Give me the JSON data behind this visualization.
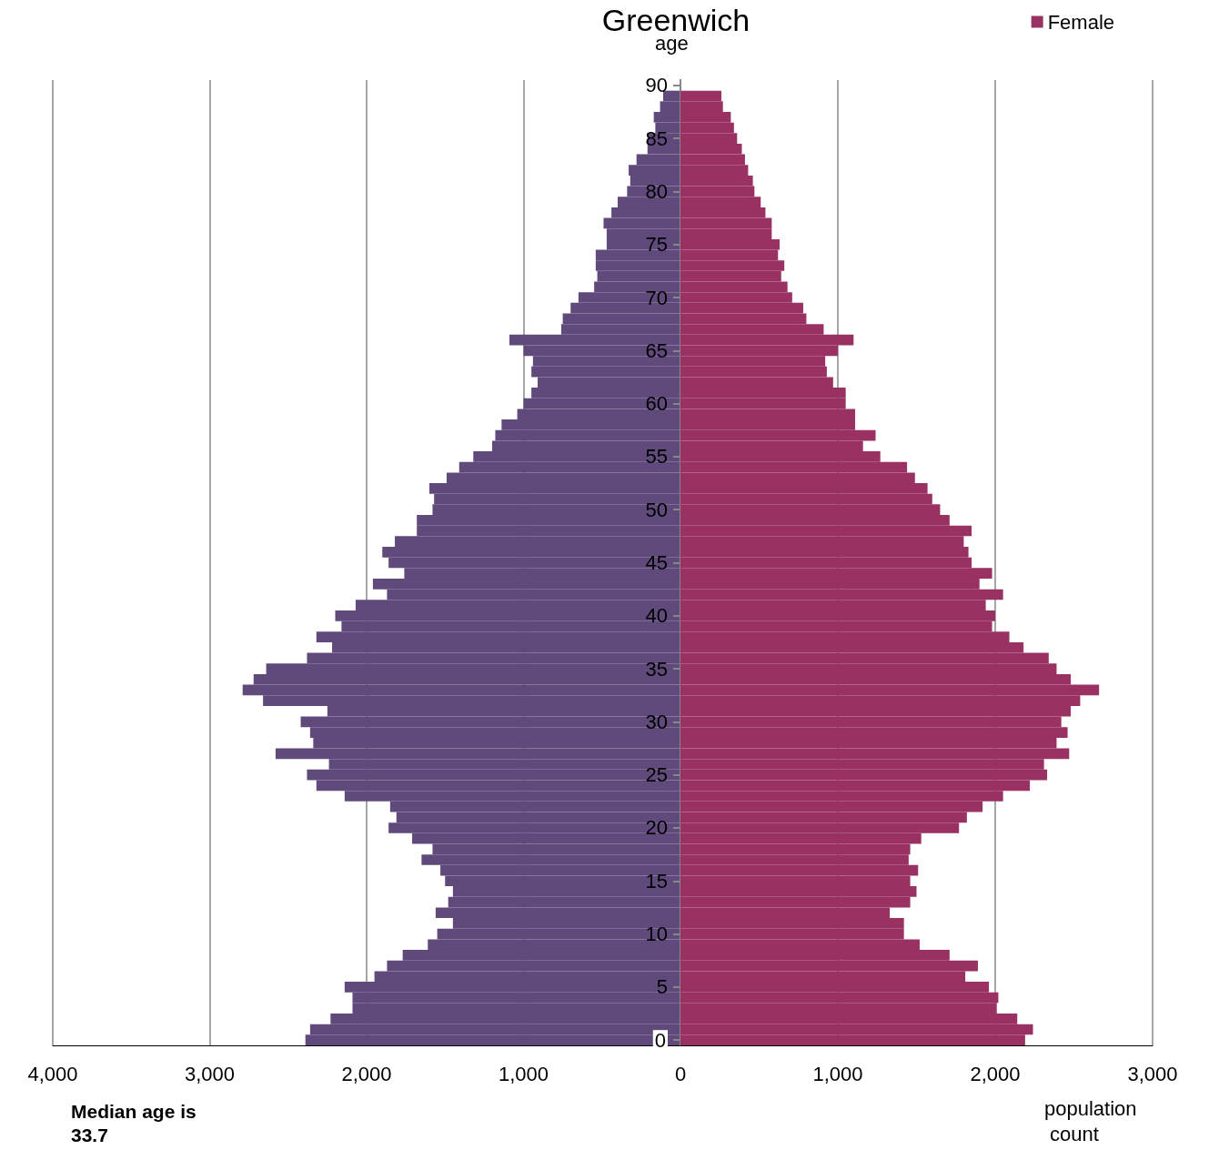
{
  "chart_data": [
    {
      "type": "bar",
      "orientation": "horizontal",
      "title": "Greenwich",
      "annotations": [
        "Median age is 33.7"
      ],
      "categories": [
        "90",
        null,
        null,
        null,
        null,
        "85",
        null,
        null,
        null,
        null,
        "80",
        null,
        null,
        null,
        null,
        "75",
        null,
        null,
        null,
        null,
        "70",
        null,
        null,
        null,
        null,
        "65",
        null,
        null,
        null,
        null,
        "60",
        null,
        null,
        null,
        null,
        "55",
        null,
        null,
        null,
        null,
        "50",
        null,
        null,
        null,
        null,
        "45",
        null,
        null,
        null,
        null,
        "40",
        null,
        null,
        null,
        null,
        "35",
        null,
        null,
        null,
        null,
        "30",
        null,
        null,
        null,
        null,
        "25",
        null,
        null,
        null,
        null,
        "20",
        null,
        null,
        null,
        null,
        "15",
        null,
        null,
        null,
        null,
        "10",
        null,
        null,
        null,
        null,
        "5",
        null,
        null,
        null,
        null,
        "0"
      ],
      "series": [
        {
          "color": "#5f4a7b",
          "values": [
            null,
            110,
            130,
            170,
            160,
            210,
            210,
            280,
            330,
            320,
            340,
            400,
            440,
            490,
            470,
            470,
            540,
            540,
            530,
            550,
            650,
            700,
            750,
            760,
            1090,
            1000,
            940,
            950,
            910,
            950,
            1000,
            1040,
            1140,
            1180,
            1200,
            1320,
            1410,
            1490,
            1600,
            1570,
            1580,
            1680,
            1680,
            1820,
            1900,
            1860,
            1760,
            1960,
            1870,
            2070,
            2200,
            2160,
            2320,
            2220,
            2380,
            2640,
            2720,
            2790,
            2660,
            2250,
            2420,
            2360,
            2340,
            2580,
            2240,
            2380,
            2320,
            2140,
            1850,
            1810,
            1860,
            1710,
            1580,
            1650,
            1530,
            1500,
            1450,
            1480,
            1560,
            1450,
            1550,
            1610,
            1770,
            1870,
            1950,
            2140,
            2090,
            2090,
            2230,
            2360,
            2390
          ]
        }
      ],
      "xlim": [
        4000,
        0
      ],
      "xticks": [
        {
          "value": 4000,
          "label": "4,000"
        },
        {
          "value": 3000,
          "label": "3,000"
        },
        {
          "value": 2000,
          "label": "2,000"
        },
        {
          "value": 1000,
          "label": "1,000"
        },
        0
      ],
      "grid": "x",
      "tick_labels": "x"
    },
    {
      "type": "bar",
      "orientation": "horizontal",
      "ylabel": "age",
      "xlabel": "population count",
      "categories": [
        "90",
        null,
        null,
        null,
        null,
        "85",
        null,
        null,
        null,
        null,
        "80",
        null,
        null,
        null,
        null,
        "75",
        null,
        null,
        null,
        null,
        "70",
        null,
        null,
        null,
        null,
        "65",
        null,
        null,
        null,
        null,
        "60",
        null,
        null,
        null,
        null,
        "55",
        null,
        null,
        null,
        null,
        "50",
        null,
        null,
        null,
        null,
        "45",
        null,
        null,
        null,
        null,
        "40",
        null,
        null,
        null,
        null,
        "35",
        null,
        null,
        null,
        null,
        "30",
        null,
        null,
        null,
        null,
        "25",
        null,
        null,
        null,
        null,
        "20",
        null,
        null,
        null,
        null,
        "15",
        null,
        null,
        null,
        null,
        "10",
        null,
        null,
        null,
        null,
        "5",
        null,
        null,
        null,
        null,
        "0"
      ],
      "series": [
        {
          "name": "Female",
          "color": "#993263",
          "values": [
            null,
            260,
            270,
            320,
            340,
            360,
            390,
            410,
            430,
            460,
            470,
            510,
            540,
            580,
            580,
            630,
            620,
            660,
            640,
            680,
            710,
            780,
            800,
            910,
            1100,
            1000,
            920,
            930,
            970,
            1050,
            1050,
            1110,
            1110,
            1240,
            1160,
            1270,
            1440,
            1490,
            1570,
            1600,
            1650,
            1710,
            1850,
            1800,
            1830,
            1850,
            1980,
            1900,
            2050,
            1940,
            2000,
            1980,
            2090,
            2180,
            2340,
            2390,
            2480,
            2660,
            2540,
            2480,
            2420,
            2460,
            2390,
            2470,
            2310,
            2330,
            2220,
            2050,
            1920,
            1820,
            1770,
            1530,
            1460,
            1450,
            1510,
            1460,
            1500,
            1460,
            1330,
            1420,
            1420,
            1520,
            1710,
            1890,
            1810,
            1960,
            2020,
            2010,
            2140,
            2240,
            2190
          ]
        }
      ],
      "xlim": [
        0,
        3000
      ],
      "xticks": [
        {
          "value": 0,
          "label": null
        },
        {
          "value": 1000,
          "label": "1,000"
        },
        {
          "value": 2000,
          "label": "2,000"
        },
        {
          "value": 3000,
          "label": "3,000"
        }
      ],
      "grid": "x",
      "legend": "top right"
    }
  ]
}
